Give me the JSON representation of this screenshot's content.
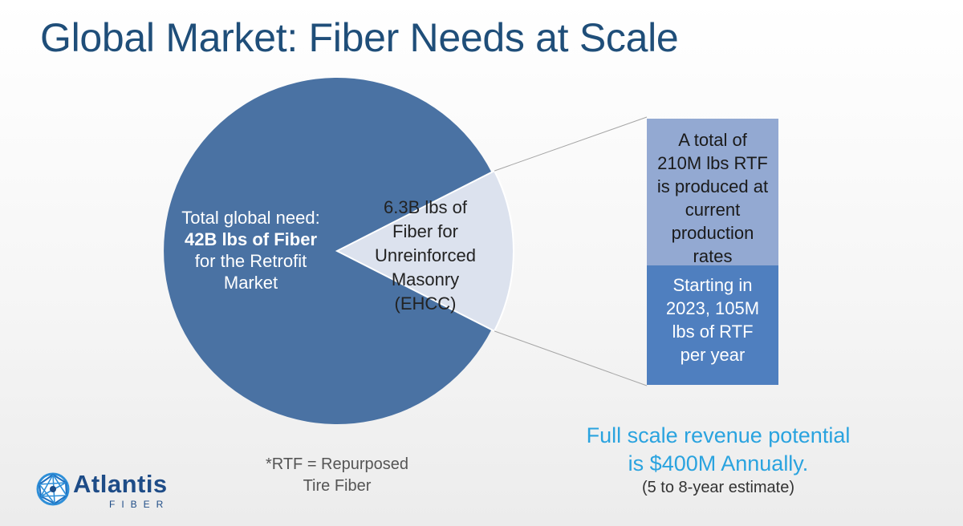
{
  "slide": {
    "title": "Global Market: Fiber Needs at Scale",
    "footnote_line1": "*RTF = Repurposed",
    "footnote_line2": "Tire Fiber",
    "revenue_line1": "Full scale revenue potential",
    "revenue_line2": "is $400M Annually.",
    "estimate": "(5 to 8-year estimate)"
  },
  "logo": {
    "name": "Atlantis",
    "subtitle": "FIBER"
  },
  "colors": {
    "title": "#1f4e79",
    "pie_main": "#4a72a3",
    "pie_slice": "#dce2ee",
    "bar_top": "#93a9d2",
    "bar_bottom": "#4f7fbf",
    "revenue": "#2aa3df",
    "connector": "#a6a6a6"
  },
  "chart_data": {
    "type": "pie",
    "title": "",
    "unit": "B lbs",
    "slices": [
      {
        "name": "Retrofit Market",
        "value": 35.7,
        "label_line1": "Total global need:",
        "label_bold": "42B lbs of Fiber",
        "label_line3": "for the Retrofit",
        "label_line4": "Market"
      },
      {
        "name": "Unreinforced Masonry (EHCC)",
        "value": 6.3,
        "label_line1": "6.3B lbs of",
        "label_line2": "Fiber for",
        "label_line3": "Unreinforced",
        "label_line4": "Masonry",
        "label_line5": "(EHCC)"
      }
    ],
    "breakdown_bar": {
      "type": "stacked_bar",
      "segments": [
        {
          "name": "Current production",
          "value_m_lbs": 210,
          "line1": "A total of",
          "line2": "210M lbs RTF",
          "line3": "is produced at",
          "line4": "current",
          "line5": "production",
          "line6": "rates"
        },
        {
          "name": "Starting in 2023",
          "value_m_lbs": 105,
          "line1": "Starting in",
          "line2": "2023, 105M",
          "line3": "lbs of RTF",
          "line4": "per year"
        }
      ]
    }
  }
}
